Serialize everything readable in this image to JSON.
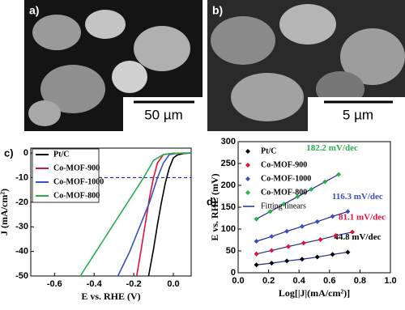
{
  "images": [
    {
      "label": "a)",
      "scale_bar": "50 µm"
    },
    {
      "label": "b)",
      "scale_bar": "5 µm"
    }
  ],
  "chart_data": [
    {
      "type": "line",
      "panel_label": "c)",
      "xlabel": "E vs. RHE (V)",
      "ylabel": "J (mA/cm²)",
      "xlim": [
        -0.72,
        0.09
      ],
      "ylim": [
        -50,
        2
      ],
      "xticks": [
        -0.6,
        -0.4,
        -0.2,
        {
          "value": 0,
          "label": "0.0"
        }
      ],
      "yticks": [
        -50,
        -40,
        -30,
        -20,
        -10,
        0
      ],
      "hline": {
        "value": -10,
        "color": "#1f2a8a"
      },
      "legend": "upper left",
      "series": [
        {
          "name": "Pt/C",
          "color": "#000000",
          "x": [
            0.09,
            0.05,
            0.02,
            0,
            -0.02,
            -0.04,
            -0.06,
            -0.08,
            -0.1,
            -0.125
          ],
          "values": [
            0,
            -0.2,
            -0.8,
            -2,
            -6,
            -12,
            -20,
            -29,
            -39,
            -50
          ]
        },
        {
          "name": "Co-MOF-900",
          "color": "#e0103a",
          "x": [
            0.09,
            0,
            -0.05,
            -0.08,
            -0.1,
            -0.12,
            -0.14,
            -0.16,
            -0.185
          ],
          "values": [
            0,
            -0.1,
            -0.6,
            -4,
            -10,
            -18,
            -28,
            -38,
            -50
          ]
        },
        {
          "name": "Co-MOF-1000",
          "color": "#3a4fc0",
          "x": [
            0.09,
            0.02,
            -0.02,
            -0.05,
            -0.08,
            -0.12,
            -0.17,
            -0.22,
            -0.28
          ],
          "values": [
            0,
            -0.1,
            -0.6,
            -4,
            -10,
            -20,
            -30,
            -40,
            -50
          ]
        },
        {
          "name": "Co-MOF-800",
          "color": "#27b04a",
          "x": [
            0.09,
            0,
            -0.05,
            -0.1,
            -0.15,
            -0.23,
            -0.31,
            -0.39,
            -0.47
          ],
          "values": [
            0,
            -0.1,
            -0.6,
            -3,
            -10,
            -20,
            -30,
            -40,
            -50
          ]
        }
      ]
    },
    {
      "type": "scatter",
      "panel_label": "d)",
      "xlabel": "Log[|J|(mA/cm²)]",
      "ylabel": "E vs. RHE (mV)",
      "xlim": [
        0,
        1
      ],
      "ylim": [
        0,
        300
      ],
      "xticks": [
        {
          "value": 0,
          "label": "0.0"
        },
        0.2,
        0.4,
        0.6,
        0.8,
        {
          "value": 1,
          "label": "1.0"
        }
      ],
      "yticks": [
        0,
        50,
        100,
        150,
        200,
        250,
        300
      ],
      "legend": "upper left",
      "fit_label": "Fitting linears",
      "fit_color": "#1f2a8a",
      "series": [
        {
          "name": "Pt/C",
          "color": "#000000",
          "slope_label": "44.8 mV/dec",
          "x": [
            0.12,
            0.22,
            0.32,
            0.42,
            0.52,
            0.62,
            0.72
          ],
          "values": [
            18,
            22,
            27,
            31,
            36,
            42,
            47
          ]
        },
        {
          "name": "Co-MOF-900",
          "color": "#e0103a",
          "slope_label": "81.1 mV/dec",
          "x": [
            0.12,
            0.22,
            0.33,
            0.43,
            0.54,
            0.64,
            0.75
          ],
          "values": [
            43,
            51,
            60,
            68,
            76,
            85,
            93
          ]
        },
        {
          "name": "Co-MOF-1000",
          "color": "#3a4fc0",
          "slope_label": "116.3 mV/dec",
          "x": [
            0.12,
            0.22,
            0.32,
            0.42,
            0.52,
            0.62,
            0.72
          ],
          "values": [
            72,
            83,
            95,
            106,
            117,
            129,
            140
          ]
        },
        {
          "name": "Co-MOF-800",
          "color": "#27b04a",
          "slope_label": "182.2 mV/dec",
          "x": [
            0.12,
            0.21,
            0.3,
            0.39,
            0.48,
            0.57,
            0.66
          ],
          "values": [
            123,
            140,
            157,
            174,
            191,
            208,
            225
          ]
        }
      ]
    }
  ]
}
